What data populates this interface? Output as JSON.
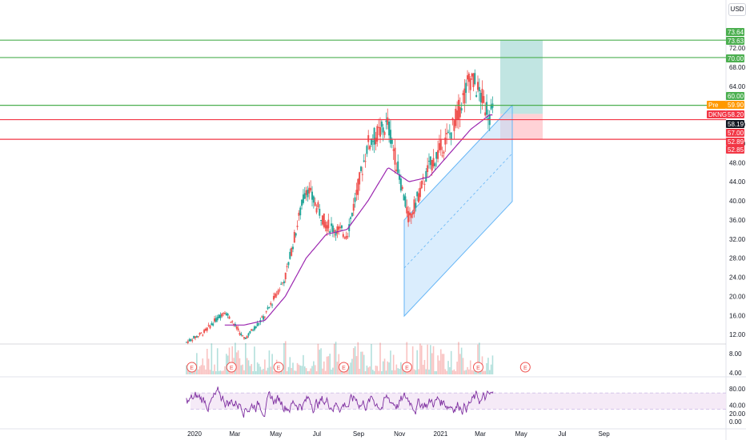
{
  "currency_button": "USD",
  "colors": {
    "up": "#26a69a",
    "down": "#ef5350",
    "green_line": "#4caf50",
    "red_line": "#f23645",
    "ma": "#9c27b0",
    "channel_fill": "#bbdefb",
    "channel_stroke": "#64b5f6",
    "target_zone": "#b2dfdb",
    "stop_zone": "#ffcdd2",
    "rsi": "#7e2fa0",
    "rsi_band": "#f3e5f5"
  },
  "price_axis": {
    "ticks": [
      "72.00",
      "68.00",
      "64.00",
      "56.00",
      "52.00",
      "48.00",
      "44.00",
      "40.00",
      "36.00",
      "32.00",
      "28.00",
      "24.00",
      "20.00",
      "16.00",
      "12.00",
      "8.00",
      "4.00"
    ]
  },
  "rsi_axis": {
    "ticks": [
      "80.00",
      "40.00",
      "20.00",
      "0.00"
    ]
  },
  "time_axis": {
    "ticks": [
      "2020",
      "Mar",
      "May",
      "Jul",
      "Sep",
      "Nov",
      "2021",
      "Mar",
      "May",
      "Jul",
      "Sep"
    ]
  },
  "badges": [
    {
      "text": "73.64",
      "color": "#4caf50"
    },
    {
      "text": "73.63",
      "color": "#4caf50"
    },
    {
      "text": "70.00",
      "color": "#4caf50"
    },
    {
      "text": "60.00",
      "color": "#4caf50"
    },
    {
      "text": "59.90",
      "color": "#ff9800",
      "prefix": "Pre"
    },
    {
      "text": "58.20",
      "color": "#f23645",
      "prefix": "DKNG"
    },
    {
      "text": "58.19",
      "color": "#131722"
    },
    {
      "text": "57.00",
      "color": "#f23645"
    },
    {
      "text": "52.89",
      "color": "#f23645"
    },
    {
      "text": "52.85",
      "color": "#f23645"
    }
  ],
  "earnings_marker": "E",
  "horizontal_levels": [
    {
      "price": 73.64,
      "color": "#4caf50"
    },
    {
      "price": 70.0,
      "color": "#4caf50"
    },
    {
      "price": 60.0,
      "color": "#4caf50"
    },
    {
      "price": 57.0,
      "color": "#f23645"
    },
    {
      "price": 52.89,
      "color": "#f23645"
    }
  ],
  "chart_data": {
    "type": "line",
    "ticker": "DKNG",
    "currency": "USD",
    "x": [
      "2019-12",
      "2020-01",
      "2020-02",
      "2020-03",
      "2020-04",
      "2020-05",
      "2020-06",
      "2020-07",
      "2020-08",
      "2020-09",
      "2020-10",
      "2020-11",
      "2020-12",
      "2021-01",
      "2021-02",
      "2021-03"
    ],
    "series": [
      {
        "name": "close",
        "values": [
          10,
          12.5,
          17,
          11,
          16,
          24,
          43,
          35,
          33,
          52,
          56,
          36,
          47,
          54,
          66,
          58.2
        ]
      },
      {
        "name": "moving average",
        "values": [
          null,
          null,
          14,
          14,
          15,
          20,
          28,
          33,
          34,
          40,
          47,
          44,
          45,
          50,
          55,
          58
        ]
      }
    ],
    "ylim": [
      4,
      76
    ],
    "last_price": 58.2,
    "premarket_price": 59.9,
    "rsi": {
      "ylim": [
        0,
        100
      ],
      "band": [
        30,
        70
      ]
    }
  }
}
